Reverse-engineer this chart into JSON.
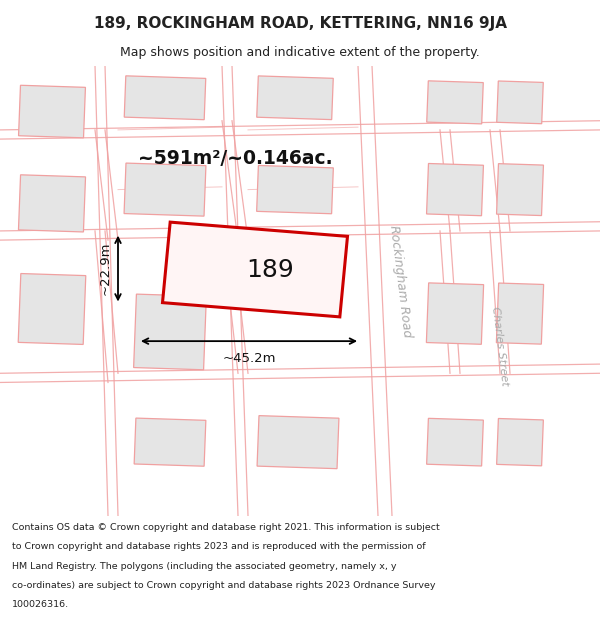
{
  "title_line1": "189, ROCKINGHAM ROAD, KETTERING, NN16 9JA",
  "title_line2": "Map shows position and indicative extent of the property.",
  "area_label": "~591m²/~0.146ac.",
  "plot_number": "189",
  "width_label": "~45.2m",
  "height_label": "~22.9m",
  "road_label1": "Rockingham Road",
  "road_label2": "Charles Street",
  "footer_lines": [
    "Contains OS data © Crown copyright and database right 2021. This information is subject",
    "to Crown copyright and database rights 2023 and is reproduced with the permission of",
    "HM Land Registry. The polygons (including the associated geometry, namely x, y",
    "co-ordinates) are subject to Crown copyright and database rights 2023 Ordnance Survey",
    "100026316."
  ],
  "road_color": "#f0a0a0",
  "building_fill": "#e5e5e5",
  "map_bg": "#f7f7f7",
  "highlight_fill": "#fff5f5",
  "highlight_edge": "#cc0000",
  "title_bg": "#ffffff",
  "footer_bg": "#ffffff"
}
